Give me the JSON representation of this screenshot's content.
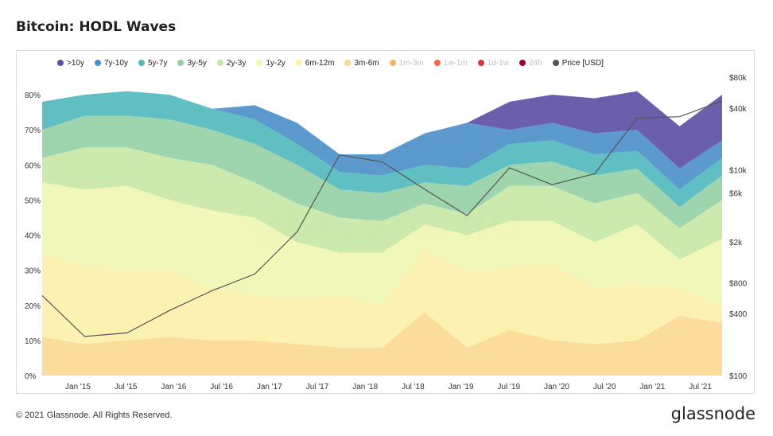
{
  "title": "Bitcoin: HODL Waves",
  "footer": "© 2021 Glassnode. All Rights Reserved.",
  "brand": "glassnode",
  "watermark": "glassnode",
  "legend": [
    {
      "label": ">10y",
      "color": "#5b4ea3",
      "dim": false
    },
    {
      "label": "7y-10y",
      "color": "#4a8fc8",
      "dim": false
    },
    {
      "label": "5y-7y",
      "color": "#4fb8bb",
      "dim": false
    },
    {
      "label": "3y-5y",
      "color": "#93d0a6",
      "dim": false
    },
    {
      "label": "2y-3y",
      "color": "#c6e8a4",
      "dim": false
    },
    {
      "label": "1y-2y",
      "color": "#eef6b0",
      "dim": false
    },
    {
      "label": "6m-12m",
      "color": "#fbf1a8",
      "dim": false
    },
    {
      "label": "3m-6m",
      "color": "#fbd890",
      "dim": false
    },
    {
      "label": "1m-3m",
      "color": "#f7b26a",
      "dim": true
    },
    {
      "label": "1w-1m",
      "color": "#ee6a4a",
      "dim": true
    },
    {
      "label": "1d-1w",
      "color": "#d8373e",
      "dim": true
    },
    {
      "label": "24h",
      "color": "#a0002b",
      "dim": true
    },
    {
      "label": "Price [USD]",
      "color": "#555555",
      "dim": false
    }
  ],
  "chart_data": {
    "type": "area",
    "stacked": true,
    "y_left_ticks": [
      "0%",
      "10%",
      "20%",
      "30%",
      "40%",
      "50%",
      "60%",
      "70%",
      "80%"
    ],
    "y_right_ticks": [
      "$100",
      "$400",
      "$800",
      "$2k",
      "$6k",
      "$10k",
      "$40k",
      "$80k"
    ],
    "y_right_values": [
      100,
      400,
      800,
      2000,
      6000,
      10000,
      40000,
      80000
    ],
    "y_right_scale": "log",
    "x_ticks": [
      "Jan '15",
      "Jul '15",
      "Jan '16",
      "Jul '16",
      "Jan '17",
      "Jul '17",
      "Jan '18",
      "Jul '18",
      "Jan '19",
      "Jul '19",
      "Jan '20",
      "Jul '20",
      "Jan '21",
      "Jul '21"
    ],
    "x_dates": [
      "2014-07",
      "2015-01",
      "2015-07",
      "2016-01",
      "2016-07",
      "2017-01",
      "2017-07",
      "2017-12",
      "2018-01",
      "2018-07",
      "2019-01",
      "2019-07",
      "2020-01",
      "2020-07",
      "2021-01",
      "2021-07",
      "2021-09"
    ],
    "ylim": [
      0,
      85
    ],
    "series": [
      {
        "name": "3m-6m",
        "color": "#fbd890",
        "values": [
          11,
          9,
          10,
          11,
          10,
          10,
          9,
          8,
          8,
          18,
          8,
          13,
          10,
          9,
          10,
          17,
          15
        ]
      },
      {
        "name": "6m-12m",
        "color": "#fbf1a8",
        "values": [
          24,
          22,
          20,
          19,
          15,
          13,
          13,
          15,
          12,
          18,
          22,
          18,
          22,
          16,
          16,
          8,
          5
        ]
      },
      {
        "name": "1y-2y",
        "color": "#eef6b0",
        "values": [
          20,
          22,
          24,
          20,
          22,
          22,
          16,
          12,
          15,
          7,
          10,
          13,
          12,
          13,
          17,
          8,
          19
        ]
      },
      {
        "name": "2y-3y",
        "color": "#c6e8a4",
        "values": [
          7,
          12,
          11,
          12,
          13,
          10,
          11,
          10,
          9,
          6,
          6,
          10,
          10,
          11,
          9,
          9,
          11
        ]
      },
      {
        "name": "3y-5y",
        "color": "#93d0a6",
        "values": [
          8,
          9,
          9,
          11,
          10,
          11,
          11,
          8,
          8,
          6,
          8,
          6,
          7,
          8,
          7,
          6,
          7
        ]
      },
      {
        "name": "5y-7y",
        "color": "#4fb8bb",
        "values": [
          8,
          6,
          7,
          7,
          6,
          7,
          6,
          5,
          5,
          5,
          5,
          6,
          6,
          6,
          5,
          5,
          5
        ]
      },
      {
        "name": "7y-10y",
        "color": "#4a8fc8",
        "values": [
          0,
          0,
          0,
          0,
          0,
          4,
          6,
          5,
          6,
          9,
          13,
          4,
          5,
          6,
          6,
          6,
          5
        ]
      },
      {
        "name": ">10y",
        "color": "#5b4ea3",
        "values": [
          0,
          0,
          0,
          0,
          0,
          0,
          0,
          0,
          0,
          0,
          0,
          8,
          8,
          10,
          11,
          12,
          13
        ]
      }
    ],
    "price_series": {
      "name": "Price [USD]",
      "color": "#555555",
      "values": [
        600,
        240,
        260,
        430,
        670,
        970,
        2500,
        14000,
        12000,
        6500,
        3600,
        10500,
        7200,
        9200,
        32000,
        33000,
        47000
      ]
    }
  }
}
